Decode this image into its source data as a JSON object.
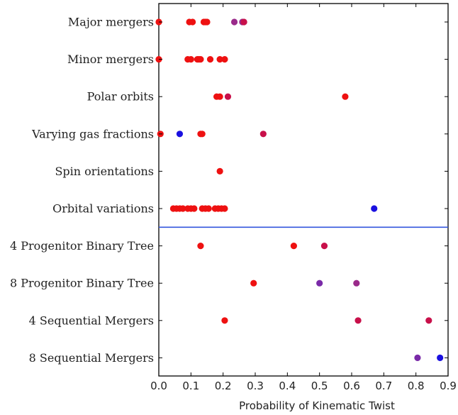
{
  "chart_data": {
    "type": "scatter",
    "title": "",
    "xlabel": "Probability of Kinematic Twist",
    "ylabel": "",
    "xlim": [
      0.0,
      0.9
    ],
    "xticks": [
      {
        "value": 0.0,
        "label": "0.0"
      },
      {
        "value": 0.1,
        "label": "0.1"
      },
      {
        "value": 0.2,
        "label": "0.2"
      },
      {
        "value": 0.3,
        "label": "0.3"
      },
      {
        "value": 0.4,
        "label": "0.4"
      },
      {
        "value": 0.5,
        "label": "0.5"
      },
      {
        "value": 0.6,
        "label": "0.6"
      },
      {
        "value": 0.7,
        "label": "0.7"
      },
      {
        "value": 0.8,
        "label": "0.8"
      },
      {
        "value": 0.9,
        "label": "0.9"
      }
    ],
    "grid": false,
    "legend": "none",
    "divider_between_categories": [
      5,
      6
    ],
    "colors": {
      "red": "#ee1111",
      "crimson": "#c8104a",
      "purple": "#9a2a8a",
      "violet": "#7a2aa8",
      "blue": "#1a10e0",
      "divider": "#3355dd"
    },
    "categories": [
      {
        "label": "Major mergers",
        "points": [
          {
            "x": 0.0,
            "color": "red"
          },
          {
            "x": 0.095,
            "color": "red"
          },
          {
            "x": 0.105,
            "color": "red"
          },
          {
            "x": 0.14,
            "color": "red"
          },
          {
            "x": 0.145,
            "color": "red"
          },
          {
            "x": 0.15,
            "color": "red"
          },
          {
            "x": 0.235,
            "color": "purple"
          },
          {
            "x": 0.26,
            "color": "purple"
          },
          {
            "x": 0.265,
            "color": "crimson"
          }
        ]
      },
      {
        "label": "Minor mergers",
        "points": [
          {
            "x": 0.0,
            "color": "red"
          },
          {
            "x": 0.09,
            "color": "red"
          },
          {
            "x": 0.1,
            "color": "red"
          },
          {
            "x": 0.12,
            "color": "red"
          },
          {
            "x": 0.125,
            "color": "red"
          },
          {
            "x": 0.13,
            "color": "red"
          },
          {
            "x": 0.16,
            "color": "red"
          },
          {
            "x": 0.19,
            "color": "red"
          },
          {
            "x": 0.205,
            "color": "red"
          }
        ]
      },
      {
        "label": "Polar orbits",
        "points": [
          {
            "x": 0.18,
            "color": "red"
          },
          {
            "x": 0.19,
            "color": "red"
          },
          {
            "x": 0.215,
            "color": "crimson"
          },
          {
            "x": 0.58,
            "color": "red"
          }
        ]
      },
      {
        "label": "Varying gas fractions",
        "points": [
          {
            "x": 0.005,
            "color": "red"
          },
          {
            "x": 0.065,
            "color": "blue"
          },
          {
            "x": 0.13,
            "color": "red"
          },
          {
            "x": 0.135,
            "color": "red"
          },
          {
            "x": 0.325,
            "color": "crimson"
          }
        ]
      },
      {
        "label": "Spin orientations",
        "points": [
          {
            "x": 0.19,
            "color": "red"
          }
        ]
      },
      {
        "label": "Orbital variations",
        "points": [
          {
            "x": 0.045,
            "color": "red"
          },
          {
            "x": 0.055,
            "color": "red"
          },
          {
            "x": 0.065,
            "color": "red"
          },
          {
            "x": 0.075,
            "color": "red"
          },
          {
            "x": 0.09,
            "color": "red"
          },
          {
            "x": 0.1,
            "color": "red"
          },
          {
            "x": 0.11,
            "color": "red"
          },
          {
            "x": 0.135,
            "color": "red"
          },
          {
            "x": 0.145,
            "color": "red"
          },
          {
            "x": 0.155,
            "color": "red"
          },
          {
            "x": 0.175,
            "color": "red"
          },
          {
            "x": 0.185,
            "color": "red"
          },
          {
            "x": 0.195,
            "color": "red"
          },
          {
            "x": 0.205,
            "color": "red"
          },
          {
            "x": 0.67,
            "color": "blue"
          }
        ]
      },
      {
        "label": "4 Progenitor Binary Tree",
        "points": [
          {
            "x": 0.13,
            "color": "red"
          },
          {
            "x": 0.42,
            "color": "red"
          },
          {
            "x": 0.515,
            "color": "crimson"
          }
        ]
      },
      {
        "label": "8 Progenitor Binary Tree",
        "points": [
          {
            "x": 0.295,
            "color": "red"
          },
          {
            "x": 0.5,
            "color": "violet"
          },
          {
            "x": 0.615,
            "color": "purple"
          }
        ]
      },
      {
        "label": "4 Sequential Mergers",
        "points": [
          {
            "x": 0.205,
            "color": "red"
          },
          {
            "x": 0.62,
            "color": "crimson"
          },
          {
            "x": 0.84,
            "color": "crimson"
          }
        ]
      },
      {
        "label": "8 Sequential Mergers",
        "points": [
          {
            "x": 0.805,
            "color": "violet"
          },
          {
            "x": 0.875,
            "color": "blue"
          }
        ]
      }
    ]
  }
}
